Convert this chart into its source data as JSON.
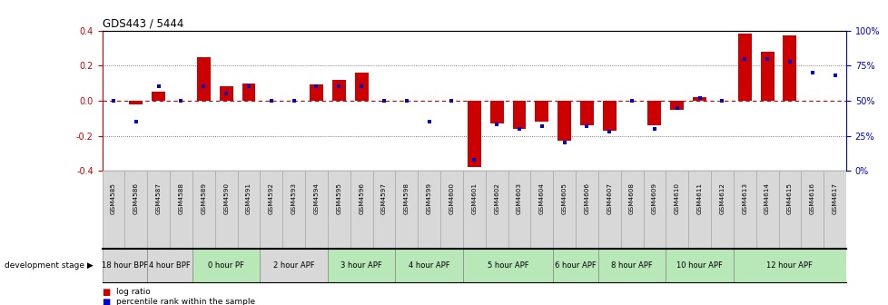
{
  "title": "GDS443 / 5444",
  "samples": [
    "GSM4585",
    "GSM4586",
    "GSM4587",
    "GSM4588",
    "GSM4589",
    "GSM4590",
    "GSM4591",
    "GSM4592",
    "GSM4593",
    "GSM4594",
    "GSM4595",
    "GSM4596",
    "GSM4597",
    "GSM4598",
    "GSM4599",
    "GSM4600",
    "GSM4601",
    "GSM4602",
    "GSM4603",
    "GSM4604",
    "GSM4605",
    "GSM4606",
    "GSM4607",
    "GSM4608",
    "GSM4609",
    "GSM4610",
    "GSM4611",
    "GSM4612",
    "GSM4613",
    "GSM4614",
    "GSM4615",
    "GSM4616",
    "GSM4617"
  ],
  "log_ratio": [
    0.0,
    -0.02,
    0.05,
    0.0,
    0.25,
    0.08,
    0.1,
    0.0,
    0.0,
    0.09,
    0.12,
    0.16,
    0.0,
    0.0,
    0.0,
    0.0,
    -0.38,
    -0.13,
    -0.16,
    -0.12,
    -0.23,
    -0.14,
    -0.17,
    0.0,
    -0.14,
    -0.05,
    0.02,
    0.0,
    0.38,
    0.28,
    0.37,
    0.0,
    0.0
  ],
  "percentile": [
    50,
    35,
    60,
    50,
    60,
    55,
    60,
    50,
    50,
    60,
    60,
    60,
    50,
    50,
    35,
    50,
    8,
    33,
    30,
    32,
    20,
    32,
    28,
    50,
    30,
    45,
    52,
    50,
    80,
    80,
    78,
    70,
    68
  ],
  "stages": [
    {
      "label": "18 hour BPF",
      "start": 0,
      "end": 2,
      "color": "#d8d8d8"
    },
    {
      "label": "4 hour BPF",
      "start": 2,
      "end": 4,
      "color": "#d8d8d8"
    },
    {
      "label": "0 hour PF",
      "start": 4,
      "end": 7,
      "color": "#b8e8b8"
    },
    {
      "label": "2 hour APF",
      "start": 7,
      "end": 10,
      "color": "#d8d8d8"
    },
    {
      "label": "3 hour APF",
      "start": 10,
      "end": 13,
      "color": "#b8e8b8"
    },
    {
      "label": "4 hour APF",
      "start": 13,
      "end": 16,
      "color": "#b8e8b8"
    },
    {
      "label": "5 hour APF",
      "start": 16,
      "end": 20,
      "color": "#b8e8b8"
    },
    {
      "label": "6 hour APF",
      "start": 20,
      "end": 22,
      "color": "#b8e8b8"
    },
    {
      "label": "8 hour APF",
      "start": 22,
      "end": 25,
      "color": "#b8e8b8"
    },
    {
      "label": "10 hour APF",
      "start": 25,
      "end": 28,
      "color": "#b8e8b8"
    },
    {
      "label": "12 hour APF",
      "start": 28,
      "end": 33,
      "color": "#b8e8b8"
    }
  ],
  "ylim": [
    -0.4,
    0.4
  ],
  "yticks_left": [
    -0.4,
    -0.2,
    0.0,
    0.2,
    0.4
  ],
  "yticks_right_pct": [
    0,
    25,
    50,
    75,
    100
  ],
  "bar_color": "#cc0000",
  "dot_color": "#0000cc",
  "zero_line_color": "#cc0000",
  "dotted_line_color": "#555555",
  "bg_color": "#ffffff",
  "label_bg": "#d8d8d8"
}
